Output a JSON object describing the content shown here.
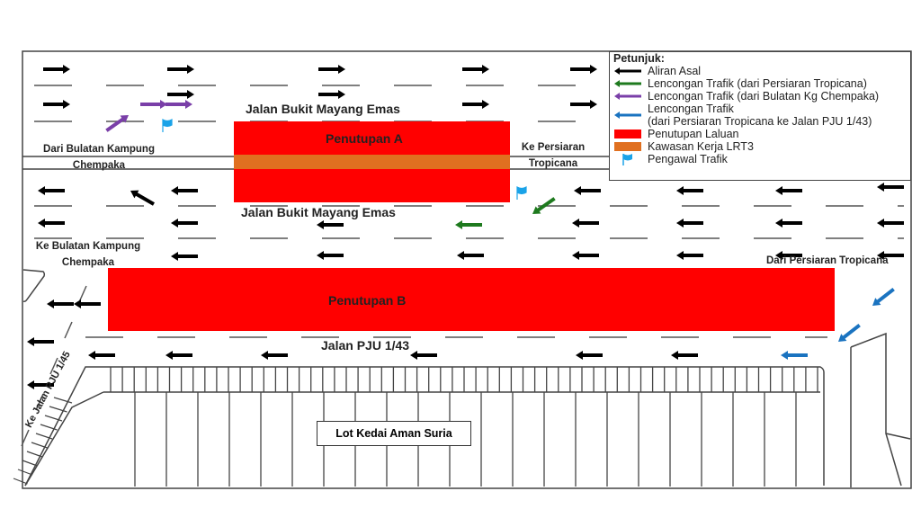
{
  "colors": {
    "original_flow": "#000000",
    "diversion_tropicana": "#1e7a1e",
    "diversion_chempaka": "#7a3fa8",
    "diversion_pju143": "#1a73c0",
    "closure": "#ff0000",
    "lrt3_work_zone": "#e07020",
    "traffic_marshal": "#1aa3e8"
  },
  "roads": {
    "upper_road": "Jalan Bukit Mayang Emas",
    "lower_road": "Jalan Bukit Mayang Emas",
    "pju143": "Jalan PJU 1/43",
    "pju145": "Ke Jalan PJU 1/45"
  },
  "closures": {
    "a": "Penutupan A",
    "b": "Penutupan B"
  },
  "places": {
    "from_chempaka_line1": "Dari Bulatan Kampung",
    "from_chempaka_line2": "Chempaka",
    "to_chempaka_line1": "Ke Bulatan Kampung",
    "to_chempaka_line2": "Chempaka",
    "to_tropicana_line1": "Ke Persiaran",
    "to_tropicana_line2": "Tropicana",
    "from_tropicana": "Dari Persiaran Tropicana",
    "shop_lot": "Lot Kedai Aman Suria"
  },
  "legend": {
    "title": "Petunjuk:",
    "items": [
      {
        "icon": "black-arrow-icon",
        "label": "Aliran Asal"
      },
      {
        "icon": "green-arrow-icon",
        "label": "Lencongan Trafik (dari Persiaran Tropicana)"
      },
      {
        "icon": "purple-arrow-icon",
        "label": "Lencongan Trafik (dari Bulatan Kg Chempaka)"
      },
      {
        "icon": "blue-arrow-icon",
        "label": "Lencongan Trafik",
        "label2": "(dari Persiaran Tropicana ke Jalan PJU 1/43)"
      },
      {
        "icon": "red-box-icon",
        "label": "Penutupan Laluan"
      },
      {
        "icon": "orange-box-icon",
        "label": "Kawasan Kerja LRT3"
      },
      {
        "icon": "flag-icon",
        "label": "Pengawal Trafik"
      }
    ]
  }
}
